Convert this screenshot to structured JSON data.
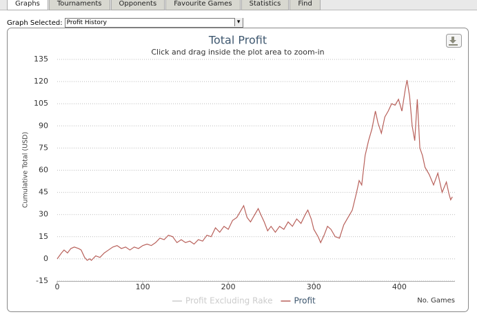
{
  "tabs": [
    "Graphs",
    "Tournaments",
    "Opponents",
    "Favourite Games",
    "Statistics",
    "Find"
  ],
  "graph_selector": {
    "label": "Graph Selected:",
    "value": "Profit History"
  },
  "chart_data": {
    "type": "line",
    "title": "Total Profit",
    "subtitle": "Click and drag inside the plot area to zoom-in",
    "y_label": "Cumulative Total (USD)",
    "x_label": "No. Games",
    "x": [
      0,
      5,
      8,
      12,
      16,
      20,
      25,
      28,
      32,
      35,
      38,
      40,
      45,
      50,
      55,
      60,
      65,
      70,
      75,
      80,
      85,
      90,
      95,
      100,
      105,
      110,
      115,
      120,
      125,
      130,
      135,
      140,
      145,
      150,
      155,
      160,
      165,
      170,
      175,
      180,
      185,
      190,
      195,
      200,
      205,
      210,
      215,
      218,
      222,
      226,
      230,
      235,
      238,
      242,
      246,
      250,
      255,
      260,
      265,
      270,
      275,
      280,
      285,
      290,
      293,
      297,
      300,
      305,
      308,
      312,
      316,
      320,
      325,
      330,
      335,
      340,
      345,
      350,
      353,
      356,
      360,
      364,
      368,
      372,
      375,
      379,
      383,
      387,
      391,
      395,
      399,
      403,
      407,
      409,
      412,
      415,
      418,
      421,
      424,
      427,
      430,
      435,
      440,
      445,
      450,
      455,
      458,
      460,
      462
    ],
    "xlim": [
      0,
      465
    ],
    "xticks": [
      0,
      100,
      200,
      300,
      400
    ],
    "ylim": [
      -15,
      135
    ],
    "yticks": [
      -15,
      0,
      15,
      30,
      45,
      60,
      75,
      90,
      105,
      120,
      135
    ],
    "grid": true,
    "series": [
      {
        "name": "Profit Excluding Rake",
        "color": "#cccccc",
        "visible": false
      },
      {
        "name": "Profit",
        "color": "#b8605a",
        "visible": true,
        "values": [
          0,
          4,
          6,
          4,
          7,
          8,
          7,
          6,
          1,
          -1,
          0,
          -1,
          2,
          1,
          4,
          6,
          8,
          9,
          7,
          8,
          6,
          8,
          7,
          9,
          10,
          9,
          11,
          14,
          13,
          16,
          15,
          11,
          13,
          11,
          12,
          10,
          13,
          12,
          16,
          15,
          21,
          18,
          22,
          20,
          26,
          28,
          33,
          36,
          28,
          25,
          29,
          34,
          30,
          25,
          19,
          22,
          18,
          22,
          20,
          25,
          22,
          27,
          24,
          30,
          33,
          27,
          20,
          15,
          11,
          16,
          22,
          20,
          15,
          14,
          23,
          28,
          33,
          45,
          53,
          50,
          70,
          80,
          88,
          100,
          92,
          85,
          96,
          100,
          105,
          104,
          108,
          100,
          115,
          121,
          110,
          90,
          80,
          108,
          75,
          70,
          62,
          57,
          50,
          58,
          45,
          52,
          44,
          40,
          42
        ]
      }
    ]
  }
}
